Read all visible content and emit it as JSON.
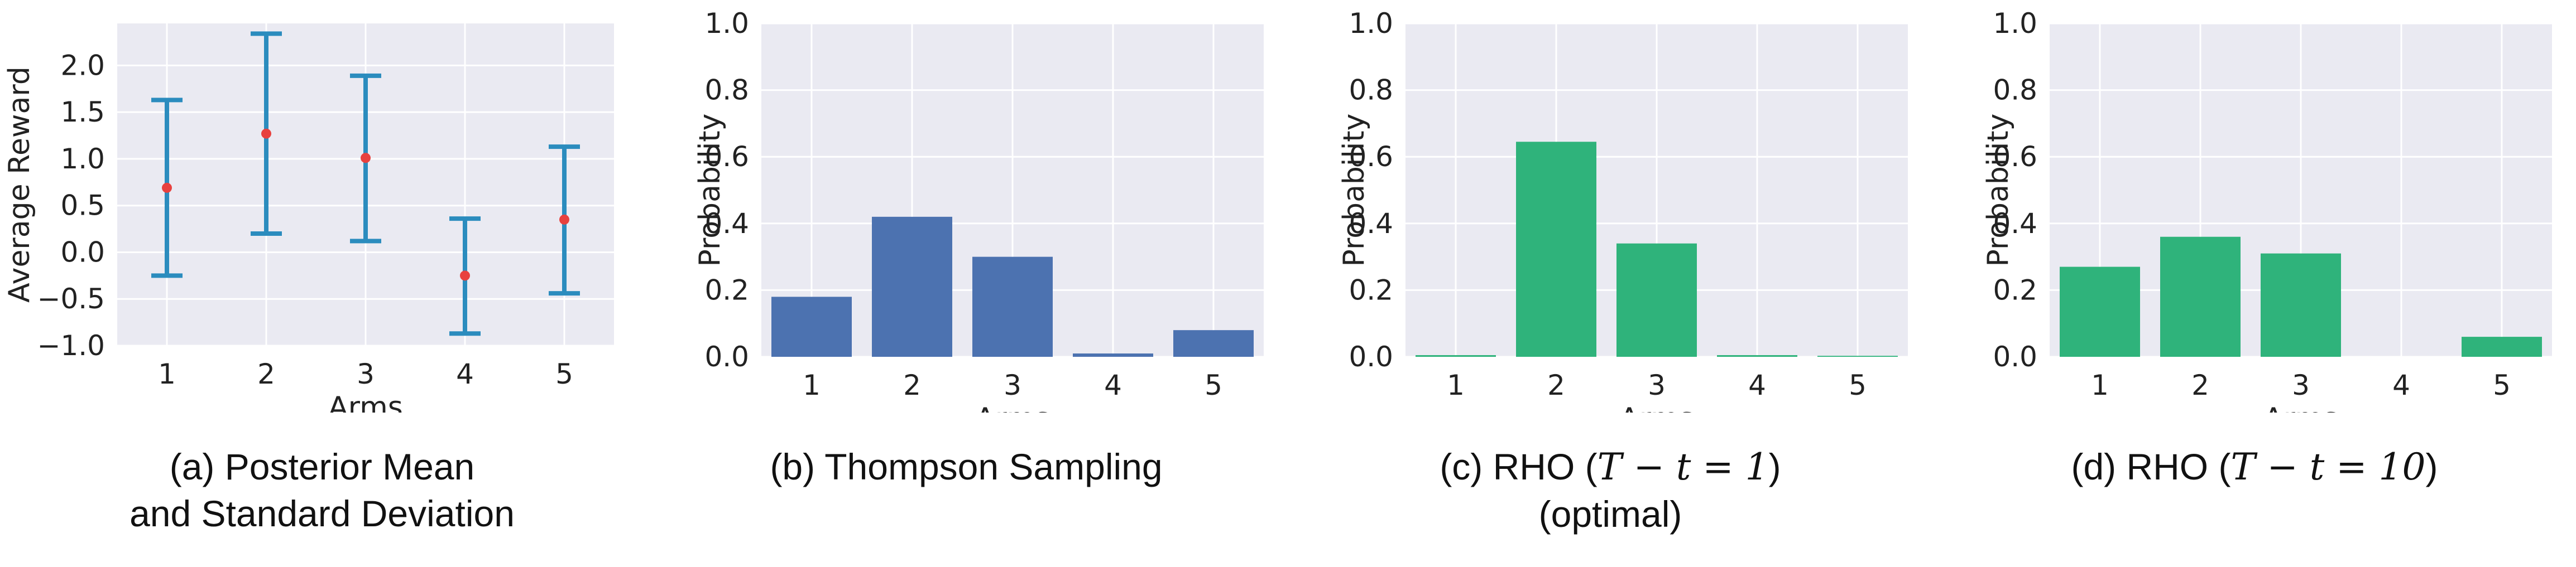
{
  "colors": {
    "background": "#eaeaf2",
    "grid": "#ffffff",
    "errorbar": "#2b8cbe",
    "mean_dot": "#e8413e",
    "thompson": "#4c72b0",
    "rho": "#2fb37b"
  },
  "chart_data": [
    {
      "type": "errorbar",
      "caption_line1": "(a) Posterior Mean",
      "caption_line2": "and Standard Deviation",
      "xlabel": "Arms",
      "ylabel": "Average Reward",
      "categories": [
        "1",
        "2",
        "3",
        "4",
        "5"
      ],
      "means": [
        0.69,
        1.27,
        1.01,
        -0.25,
        0.35
      ],
      "lower": [
        -0.25,
        0.2,
        0.12,
        -0.87,
        -0.44
      ],
      "upper": [
        1.63,
        2.34,
        1.89,
        0.36,
        1.13
      ],
      "ylim": [
        -1.0,
        2.45
      ],
      "yticks": [
        -1.0,
        -0.5,
        0.0,
        0.5,
        1.0,
        1.5,
        2.0
      ],
      "ytick_labels": [
        "−1.0",
        "−0.5",
        "0.0",
        "0.5",
        "1.0",
        "1.5",
        "2.0"
      ],
      "grid": true
    },
    {
      "type": "bar",
      "caption_line1": "(b) Thompson Sampling",
      "xlabel": "Arms",
      "ylabel": "Probability",
      "categories": [
        "1",
        "2",
        "3",
        "4",
        "5"
      ],
      "values": [
        0.18,
        0.42,
        0.3,
        0.01,
        0.08
      ],
      "ylim": [
        0.0,
        1.0
      ],
      "yticks": [
        0.0,
        0.2,
        0.4,
        0.6,
        0.8,
        1.0
      ],
      "ytick_labels": [
        "0.0",
        "0.2",
        "0.4",
        "0.6",
        "0.8",
        "1.0"
      ],
      "grid": true
    },
    {
      "type": "bar",
      "caption_prefix": "(c) RHO (",
      "caption_math": "T − t  =  1",
      "caption_suffix": ")",
      "caption_line2": "(optimal)",
      "xlabel": "Arms",
      "ylabel": "Probability",
      "categories": [
        "1",
        "2",
        "3",
        "4",
        "5"
      ],
      "values": [
        0.005,
        0.645,
        0.34,
        0.005,
        0.003
      ],
      "ylim": [
        0.0,
        1.0
      ],
      "yticks": [
        0.0,
        0.2,
        0.4,
        0.6,
        0.8,
        1.0
      ],
      "ytick_labels": [
        "0.0",
        "0.2",
        "0.4",
        "0.6",
        "0.8",
        "1.0"
      ],
      "grid": true
    },
    {
      "type": "bar",
      "caption_prefix": "(d) RHO (",
      "caption_math": "T − t  = 10",
      "caption_suffix": ")",
      "xlabel": "Arms",
      "ylabel": "Probability",
      "categories": [
        "1",
        "2",
        "3",
        "4",
        "5"
      ],
      "values": [
        0.27,
        0.36,
        0.31,
        0.0,
        0.06
      ],
      "ylim": [
        0.0,
        1.0
      ],
      "yticks": [
        0.0,
        0.2,
        0.4,
        0.6,
        0.8,
        1.0
      ],
      "ytick_labels": [
        "0.0",
        "0.2",
        "0.4",
        "0.6",
        "0.8",
        "1.0"
      ],
      "grid": true
    }
  ]
}
